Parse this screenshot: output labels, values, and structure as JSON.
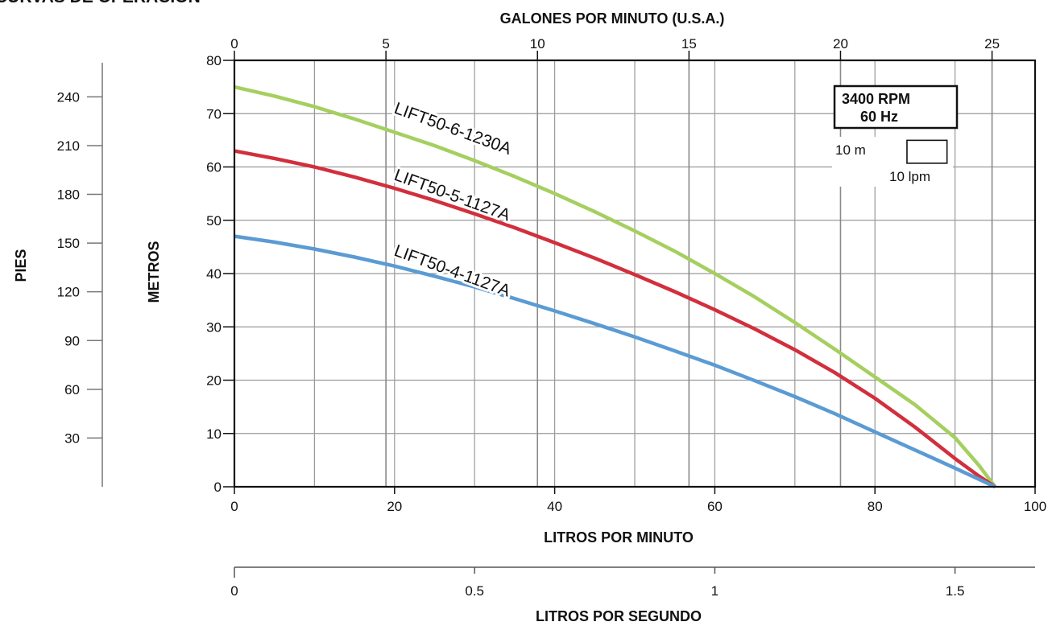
{
  "page_title": "CURVAS DE OPERACIÓN",
  "chart_data": {
    "type": "line",
    "x": [
      0,
      5,
      10,
      15,
      20,
      25,
      30,
      35,
      40,
      45,
      50,
      55,
      60,
      65,
      70,
      75,
      80,
      85,
      90,
      93,
      95
    ],
    "xlabel": "LITROS POR MINUTO",
    "ylabel": "METROS",
    "xlim": [
      0,
      100
    ],
    "ylim": [
      0,
      80
    ],
    "grid": true,
    "series": [
      {
        "name": "LIFT50-6-1230A",
        "color": "#a5cf5f",
        "values": [
          75,
          73.3,
          71.3,
          69,
          66.5,
          64,
          61.2,
          58.2,
          55,
          51.6,
          48,
          44.2,
          40,
          35.6,
          30.8,
          25.8,
          20.6,
          15.4,
          9.2,
          4,
          0
        ]
      },
      {
        "name": "LIFT50-5-1127A",
        "color": "#d22f3d",
        "values": [
          63,
          61.6,
          60,
          58.1,
          56,
          53.7,
          51.2,
          48.6,
          45.8,
          42.9,
          39.8,
          36.6,
          33.2,
          29.6,
          25.7,
          21.4,
          16.6,
          11.2,
          5.3,
          2,
          0
        ]
      },
      {
        "name": "LIFT50-4-1127A",
        "color": "#5b9bd4",
        "values": [
          47,
          45.9,
          44.6,
          43.1,
          41.4,
          39.5,
          37.5,
          35.3,
          33,
          30.6,
          28.1,
          25.5,
          22.8,
          19.9,
          16.9,
          13.7,
          10.3,
          6.9,
          3.5,
          1.4,
          0
        ]
      }
    ],
    "x_ticks": [
      "0",
      "20",
      "40",
      "60",
      "80",
      "100"
    ],
    "y_ticks": [
      "0",
      "10",
      "20",
      "30",
      "40",
      "50",
      "60",
      "70",
      "80"
    ],
    "top_axis": {
      "label": "GALONES POR MINUTO (U.S.A.)",
      "ticks": [
        "0",
        "5",
        "10",
        "15",
        "20",
        "25"
      ]
    },
    "left_axis": {
      "label": "PIES",
      "ticks": [
        "30",
        "60",
        "90",
        "120",
        "150",
        "180",
        "210",
        "240"
      ]
    },
    "bottom_axis": {
      "label": "LITROS POR SEGUNDO",
      "ticks": [
        "0",
        "0.5",
        "1",
        "1.5"
      ]
    },
    "annotations": {
      "speed_box": {
        "line1": "3400 RPM",
        "line2": "60 Hz"
      },
      "scale_box": {
        "vertical": "10 m",
        "horizontal": "10 lpm"
      }
    }
  }
}
